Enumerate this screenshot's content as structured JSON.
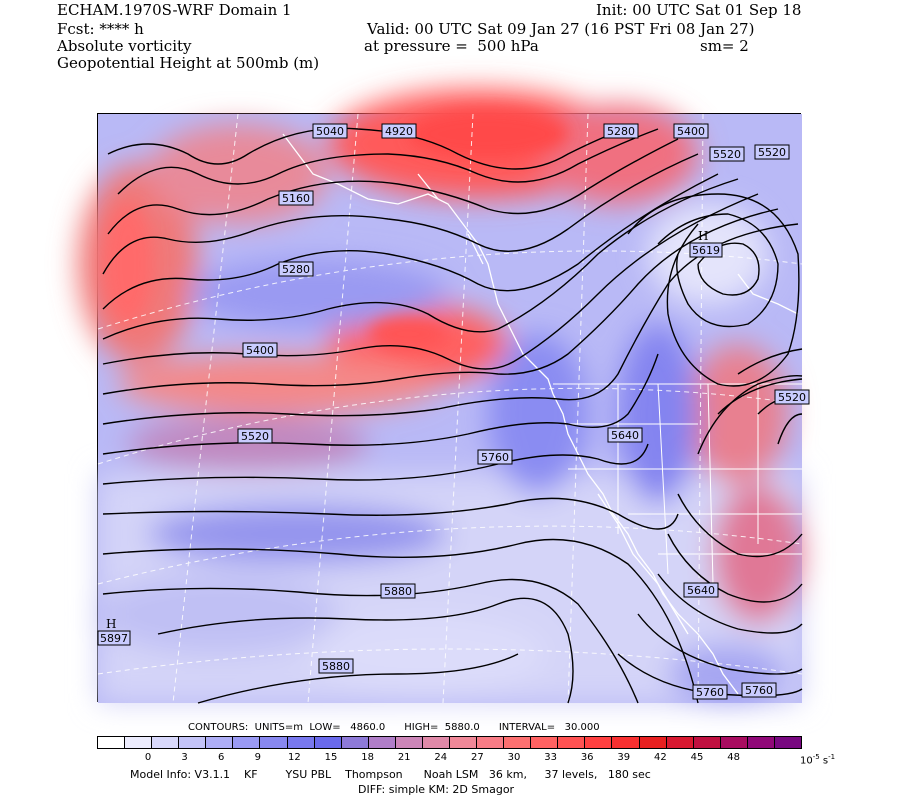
{
  "header": {
    "left_line1": "ECHAM.1970S-WRF Domain 1",
    "left_line2": "Fcst: **** h",
    "left_line3": "Absolute vorticity",
    "left_line4": "Geopotential Height at 500mb (m)",
    "init": "Init: 00 UTC Sat 01 Sep 18",
    "valid": "Valid: 00 UTC Sat 09 Jan 27 (16 PST Fri 08 Jan 27)",
    "pressure": "at pressure =  500 hPa",
    "sm": "sm= 2"
  },
  "map": {
    "contour_labels": [
      {
        "text": "5040"
      },
      {
        "text": "4920"
      },
      {
        "text": "5280"
      },
      {
        "text": "5400"
      },
      {
        "text": "5520"
      },
      {
        "text": "5520"
      },
      {
        "text": "5160"
      },
      {
        "text": "5280"
      },
      {
        "text": "5400"
      },
      {
        "text": "5520"
      },
      {
        "text": "5760"
      },
      {
        "text": "5640"
      },
      {
        "text": "5520"
      },
      {
        "text": "5880"
      },
      {
        "text": "5880"
      },
      {
        "text": "5640"
      },
      {
        "text": "5760"
      },
      {
        "text": "5760"
      }
    ],
    "high_labels": [
      {
        "letter": "H",
        "value": "5619"
      },
      {
        "letter": "H",
        "value": "5897"
      }
    ],
    "colors": {
      "positive": "#ff5050",
      "negative": "#7a7cf5",
      "background": "#c8c8f6"
    }
  },
  "contour_info": {
    "text": "CONTOURS:  UNITS=m  LOW=   4860.0      HIGH=  5880.0      INTERVAL=   30.000"
  },
  "colorbar": {
    "swatch_colors": [
      "#ffffff",
      "#ececfd",
      "#d8d8fb",
      "#c4c4f8",
      "#aeaef6",
      "#9a9af4",
      "#8888f0",
      "#7878ee",
      "#6a6aec",
      "#8e7ad8",
      "#b07ec8",
      "#cc86b8",
      "#e089a8",
      "#f08898",
      "#f87c86",
      "#fc7070",
      "#ff6262",
      "#ff5252",
      "#ff4040",
      "#f83030",
      "#e82020",
      "#d81830",
      "#c01040",
      "#a80c60",
      "#900878",
      "#780880"
    ],
    "ticks": [
      "0",
      "3",
      "6",
      "9",
      "12",
      "15",
      "18",
      "21",
      "24",
      "27",
      "30",
      "33",
      "36",
      "39",
      "42",
      "45",
      "48"
    ],
    "unit_base": "10",
    "unit_exp": "-5",
    "unit_tail": " s",
    "unit_tail_exp": "-1"
  },
  "footer": {
    "line1": "Model Info: V3.1.1    KF        YSU PBL    Thompson      Noah LSM   36 km,     37 levels,   180 sec",
    "line2": "DIFF: simple KM: 2D Smagor"
  }
}
